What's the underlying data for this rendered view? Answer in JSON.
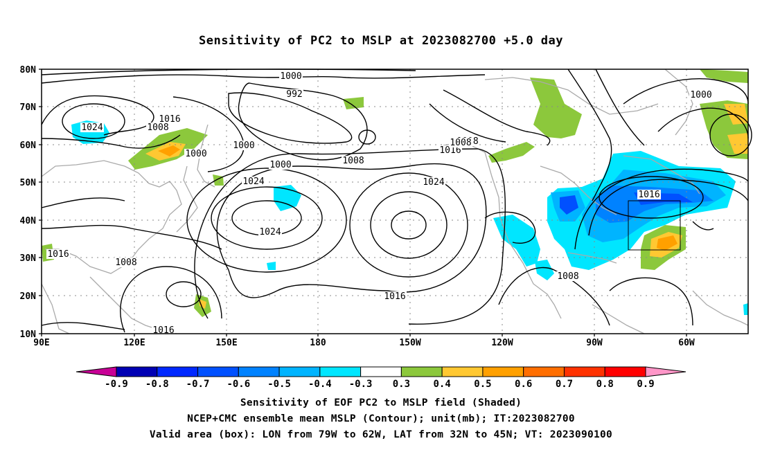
{
  "title": "Sensitivity of PC2 to MSLP at 2023082700 +5.0 day",
  "lat_labels": [
    "80N",
    "70N",
    "60N",
    "50N",
    "40N",
    "30N",
    "20N",
    "10N"
  ],
  "lon_labels": [
    "90E",
    "120E",
    "150E",
    "180",
    "150W",
    "120W",
    "90W",
    "60W"
  ],
  "colorbar": {
    "ticks": [
      "-0.9",
      "-0.8",
      "-0.7",
      "-0.6",
      "-0.5",
      "-0.4",
      "-0.3",
      "0.3",
      "0.4",
      "0.5",
      "0.6",
      "0.7",
      "0.8",
      "0.9"
    ],
    "colors": [
      "#c80096",
      "#0000b4",
      "#0028ff",
      "#0050ff",
      "#0082ff",
      "#00b4ff",
      "#00e6ff",
      "#ffffff",
      "#8cc83c",
      "#ffc832",
      "#ffa000",
      "#ff6e00",
      "#ff3200",
      "#ff0000",
      "#ff96c8"
    ]
  },
  "contour_labels": [
    "1000",
    "992",
    "1016",
    "1024",
    "1008",
    "1000",
    "1000",
    "1008",
    "1000",
    "1016",
    "1024",
    "1008",
    "1016",
    "1016",
    "1024",
    "1024",
    "1000",
    "1016",
    "1008",
    "1016",
    "1008",
    "1008"
  ],
  "captions": {
    "line1": "Sensitivity of EOF PC2 to MSLP field (Shaded)",
    "line2": "NCEP+CMC ensemble mean MSLP (Contour); unit(mb); IT:2023082700",
    "line3": "Valid area (box): LON from 79W to 62W, LAT from 32N to 45N; VT: 2023090100"
  },
  "valid_box": {
    "lon_min": -79,
    "lon_max": -62,
    "lat_min": 32,
    "lat_max": 45
  }
}
